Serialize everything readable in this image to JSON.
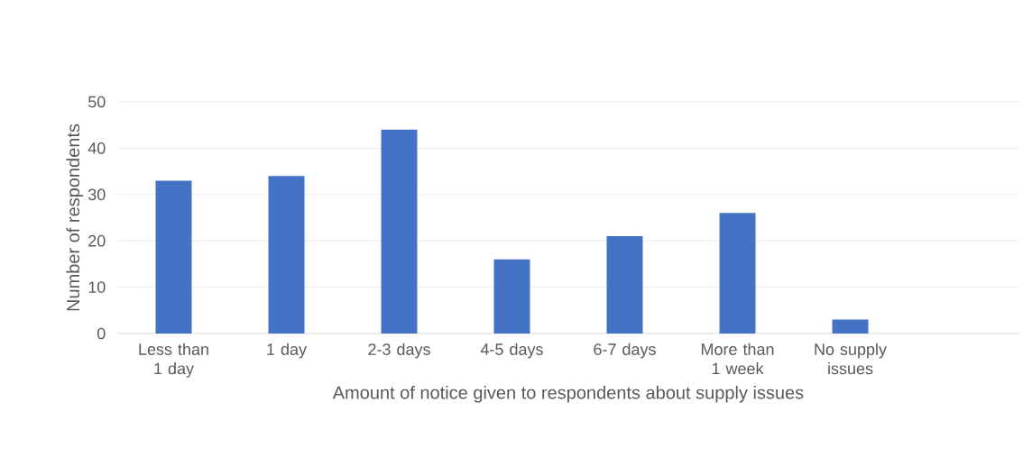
{
  "chart_data": {
    "type": "bar",
    "xlabel": "Amount of notice given to respondents about supply issues",
    "ylabel": "Number of respondents",
    "categories": [
      "Less than 1 day",
      "1 day",
      "2-3 days",
      "4-5 days",
      "6-7 days",
      "More than 1 week",
      "No supply issues",
      null
    ],
    "values": [
      33,
      34,
      44,
      16,
      21,
      26,
      3,
      null
    ],
    "color": "#4472c4",
    "ylim": [
      0,
      50
    ],
    "yticks": [
      0,
      10,
      20,
      30,
      40,
      50
    ],
    "grid": "y"
  }
}
